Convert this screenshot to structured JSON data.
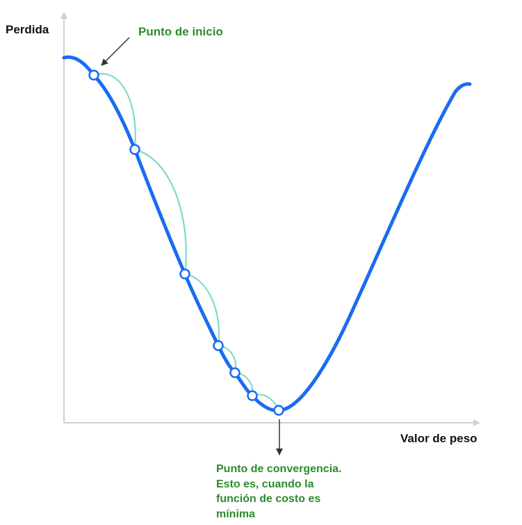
{
  "axes": {
    "y_label": "Perdida",
    "x_label": "Valor de peso",
    "axis_color": "#d0d0d0"
  },
  "annotations": {
    "start": "Punto de inicio",
    "convergence_lines": [
      "Punto de convergencia.",
      "Esto es, cuando la",
      "función de costo es",
      "mínima"
    ],
    "annotation_color": "#2e8b2e",
    "arrow_color": "#333333"
  },
  "curve": {
    "color": "#1a6cf0",
    "step_arc_color": "#7fd9cc"
  },
  "steps": {
    "count": 7
  },
  "icons": {
    "start_arrow": "arrow-icon",
    "convergence_arrow": "arrow-icon"
  }
}
